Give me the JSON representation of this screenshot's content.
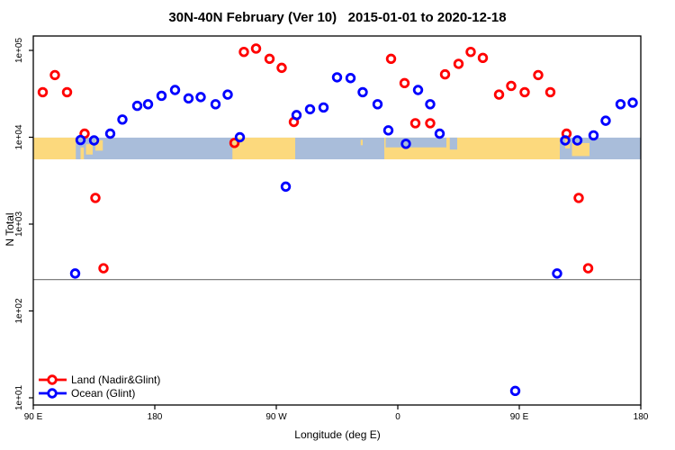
{
  "title": "30N-40N February (Ver 10)   2015-01-01 to 2020-12-18",
  "legend": {
    "land_label": "Land (Nadir&Glint)",
    "ocean_label": "Ocean (Glint)"
  },
  "colors": {
    "land_series": "#ff0000",
    "ocean_series": "#0000ff",
    "map_land": "#fcd97d",
    "map_ocean": "#a9bdda",
    "reference_line": "#808080",
    "axis": "#000000"
  },
  "chart_data": {
    "type": "scatter",
    "title": "30N-40N February (Ver 10)   2015-01-01 to 2020-12-18",
    "xlabel": "Longitude (deg E)",
    "ylabel": "N Total",
    "y_log_scale": true,
    "x_axis_note": "longitude axis runs eastward from 90E and wraps through 180, 90W, 0, back to 90E and 180; internal coordinate 90..540 deg",
    "xlim": [
      90,
      540
    ],
    "ylim": [
      10,
      100000
    ],
    "x_ticks": [
      {
        "lon": 90,
        "label": "90 E"
      },
      {
        "lon": 180,
        "label": "180"
      },
      {
        "lon": 270,
        "label": "90 W"
      },
      {
        "lon": 360,
        "label": "0"
      },
      {
        "lon": 450,
        "label": "90 E"
      },
      {
        "lon": 540,
        "label": "180"
      }
    ],
    "y_ticks": [
      {
        "value": 10,
        "label": "1e+01"
      },
      {
        "value": 100,
        "label": "1e+02"
      },
      {
        "value": 1000,
        "label": "1e+03"
      },
      {
        "value": 10000,
        "label": "1e+04"
      },
      {
        "value": 100000,
        "label": "1e+05"
      }
    ],
    "reference_line": {
      "value": 230
    },
    "series": [
      {
        "name": "Land (Nadir&Glint)",
        "color": "#ff0000",
        "points": [
          [
            97,
            33000
          ],
          [
            106,
            52000
          ],
          [
            115,
            33000
          ],
          [
            128,
            11000
          ],
          [
            136,
            2000
          ],
          [
            142,
            310
          ],
          [
            239,
            8600
          ],
          [
            246,
            96000
          ],
          [
            255,
            105000
          ],
          [
            265,
            80000
          ],
          [
            274,
            63000
          ],
          [
            283,
            15000
          ],
          [
            355,
            80000
          ],
          [
            365,
            42000
          ],
          [
            373,
            14500
          ],
          [
            384,
            14500
          ],
          [
            395,
            53000
          ],
          [
            405,
            70000
          ],
          [
            414,
            96000
          ],
          [
            423,
            82000
          ],
          [
            435,
            31000
          ],
          [
            444,
            39000
          ],
          [
            454,
            33000
          ],
          [
            464,
            52000
          ],
          [
            473,
            33000
          ],
          [
            485,
            11000
          ],
          [
            494,
            2000
          ],
          [
            501,
            310
          ]
        ]
      },
      {
        "name": "Ocean (Glint)",
        "color": "#0000ff",
        "points": [
          [
            121,
            270
          ],
          [
            125,
            9300
          ],
          [
            135,
            9200
          ],
          [
            147,
            11000
          ],
          [
            156,
            16000
          ],
          [
            167,
            23000
          ],
          [
            175,
            24000
          ],
          [
            185,
            30000
          ],
          [
            195,
            35000
          ],
          [
            205,
            28000
          ],
          [
            214,
            29000
          ],
          [
            225,
            24000
          ],
          [
            234,
            31000
          ],
          [
            243,
            10000
          ],
          [
            277,
            2700
          ],
          [
            285,
            18000
          ],
          [
            295,
            21000
          ],
          [
            305,
            22000
          ],
          [
            315,
            49000
          ],
          [
            325,
            48000
          ],
          [
            334,
            33000
          ],
          [
            345,
            24000
          ],
          [
            353,
            12000
          ],
          [
            366,
            8400
          ],
          [
            375,
            35000
          ],
          [
            384,
            24000
          ],
          [
            391,
            11000
          ],
          [
            447,
            12
          ],
          [
            478,
            270
          ],
          [
            484,
            9200
          ],
          [
            493,
            9200
          ],
          [
            505,
            10500
          ],
          [
            514,
            15500
          ],
          [
            525,
            24000
          ],
          [
            534,
            25000
          ]
        ]
      }
    ],
    "map_band": {
      "description": "world map strip of the 30N-40N latitude band drawn across the plot",
      "value_top": 9900,
      "value_bottom": 5570,
      "segments": [
        {
          "type": "land",
          "lon0": 90,
          "lon1": 121.5,
          "t0": 0,
          "t1": 1
        },
        {
          "type": "land",
          "lon0": 125,
          "lon1": 127.5,
          "t0": 0.45,
          "t1": 1
        },
        {
          "type": "land",
          "lon0": 129,
          "lon1": 134,
          "t0": 0.3,
          "t1": 0.78
        },
        {
          "type": "land",
          "lon0": 136,
          "lon1": 141.5,
          "t0": 0.12,
          "t1": 0.6
        },
        {
          "type": "land",
          "lon0": 237.5,
          "lon1": 284,
          "t0": 0,
          "t1": 1
        },
        {
          "type": "land",
          "lon0": 332.5,
          "lon1": 334,
          "t0": 0.1,
          "t1": 0.35
        },
        {
          "type": "land",
          "lon0": 350,
          "lon1": 480,
          "t0": 0,
          "t1": 1
        },
        {
          "type": "ocean",
          "lon0": 351,
          "lon1": 396,
          "t0": 0,
          "t1": 0.45
        },
        {
          "type": "ocean",
          "lon0": 398.5,
          "lon1": 404,
          "t0": 0,
          "t1": 0.55
        },
        {
          "type": "land",
          "lon0": 484,
          "lon1": 487.5,
          "t0": 0,
          "t1": 0.5
        },
        {
          "type": "land",
          "lon0": 489,
          "lon1": 502,
          "t0": 0.25,
          "t1": 0.85
        }
      ]
    }
  }
}
